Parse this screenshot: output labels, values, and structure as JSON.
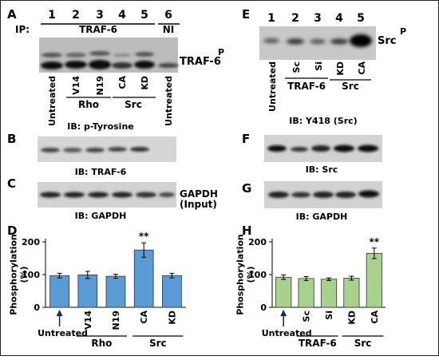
{
  "panels": {
    "A": {
      "label": "A",
      "lane_numbers": [
        "1",
        "2",
        "3",
        "4",
        "5",
        "6"
      ],
      "ip_prefix": "IP:",
      "ip_label": "TRAF-6",
      "ni_label": "NI",
      "band_label": "TRAF-6",
      "band_superscript": "P",
      "lanes": [
        "Untreated",
        "V14",
        "N19",
        "CA",
        "KD",
        "Untreated"
      ],
      "groups": [
        "Rho",
        "Src"
      ],
      "blot_caption": "IB: p-Tyrosine"
    },
    "B": {
      "label": "B",
      "blot_caption": "IB: TRAF-6"
    },
    "C": {
      "label": "C",
      "blot_caption": "IB: GAPDH",
      "side_label_1": "GAPDH",
      "side_label_2": "(Input)"
    },
    "D": {
      "label": "D"
    },
    "E": {
      "label": "E",
      "lane_numbers": [
        "1",
        "2",
        "3",
        "4",
        "5"
      ],
      "band_label": "Src",
      "band_superscript": "P",
      "lanes": [
        "Untreated",
        "Sc",
        "Si",
        "KD",
        "CA"
      ],
      "groups": [
        "TRAF-6",
        "Src"
      ],
      "blot_caption": "IB: Y418 (Src)"
    },
    "F": {
      "label": "F",
      "blot_caption": "IB: Src"
    },
    "G": {
      "label": "G",
      "blot_caption": "IB: GAPDH"
    },
    "H": {
      "label": "H"
    }
  },
  "chart_data": [
    {
      "panel": "D",
      "type": "bar",
      "categories": [
        "Untreated",
        "V14",
        "N19",
        "CA",
        "KD"
      ],
      "values": [
        97,
        99,
        95,
        175,
        97
      ],
      "errors": [
        7,
        11,
        6,
        22,
        7
      ],
      "ylabel": "Phosphorylation (%)",
      "ylim": [
        0,
        200
      ],
      "yticks": [
        "0",
        "100",
        "200"
      ],
      "groups": [
        {
          "label": "Rho",
          "from": 1,
          "to": 2
        },
        {
          "label": "Src",
          "from": 3,
          "to": 4
        }
      ],
      "significance": [
        {
          "index": 3,
          "label": "**"
        }
      ],
      "color": "#5b9bd5"
    },
    {
      "panel": "H",
      "type": "bar",
      "categories": [
        "Untreated",
        "Sc",
        "Si",
        "KD",
        "CA"
      ],
      "values": [
        92,
        88,
        86,
        89,
        165
      ],
      "errors": [
        7,
        6,
        4,
        6,
        16
      ],
      "ylabel": "Phosphorylation (%)",
      "ylim": [
        0,
        200
      ],
      "yticks": [
        "0",
        "100",
        "200"
      ],
      "groups": [
        {
          "label": "TRAF-6",
          "from": 1,
          "to": 2
        },
        {
          "label": "Src",
          "from": 3,
          "to": 4
        }
      ],
      "significance": [
        {
          "index": 4,
          "label": "**"
        }
      ],
      "color": "#a9d18e"
    }
  ]
}
